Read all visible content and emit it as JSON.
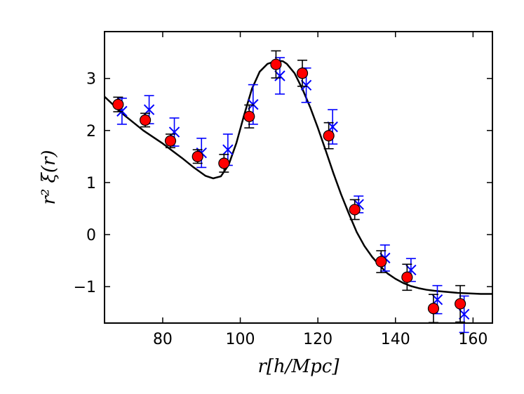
{
  "chart_data": {
    "type": "scatter",
    "title": "",
    "xlabel": "r[h/Mpc]",
    "ylabel": "r² ξ(r)",
    "xlim": [
      65,
      165
    ],
    "ylim": [
      -1.7,
      3.9
    ],
    "xticks": [
      80,
      100,
      120,
      140,
      160
    ],
    "yticks": [
      -1,
      0,
      1,
      2,
      3
    ],
    "xtick_labels": [
      "80",
      "100",
      "120",
      "140",
      "160"
    ],
    "ytick_labels": [
      "−1",
      "0",
      "1",
      "2",
      "3"
    ],
    "grid": false,
    "legend": "none",
    "series": [
      {
        "style": "red-circles-black-errorbars",
        "color": "#ff0000",
        "errorbar_color": "#000000",
        "x": [
          68.5,
          75.5,
          82.0,
          89.0,
          95.8,
          102.3,
          109.2,
          116.0,
          122.8,
          129.5,
          136.3,
          143.0,
          149.8,
          156.7
        ],
        "y": [
          2.5,
          2.2,
          1.8,
          1.5,
          1.37,
          2.27,
          3.27,
          3.1,
          1.9,
          0.48,
          -0.52,
          -0.82,
          -1.42,
          -1.33
        ],
        "yerr": [
          0.14,
          0.13,
          0.13,
          0.13,
          0.17,
          0.22,
          0.26,
          0.25,
          0.25,
          0.19,
          0.21,
          0.25,
          0.27,
          0.35
        ]
      },
      {
        "style": "blue-crosses-blue-errorbars",
        "color": "#0000ff",
        "errorbar_color": "#0000ff",
        "x": [
          69.5,
          76.5,
          83.0,
          90.0,
          96.8,
          103.3,
          110.2,
          117.0,
          123.8,
          130.5,
          137.3,
          144.0,
          150.8,
          157.7
        ],
        "y": [
          2.37,
          2.4,
          1.97,
          1.57,
          1.63,
          2.5,
          3.05,
          2.87,
          2.07,
          0.58,
          -0.45,
          -0.68,
          -1.25,
          -1.53
        ],
        "yerr": [
          0.25,
          0.27,
          0.27,
          0.28,
          0.3,
          0.38,
          0.35,
          0.33,
          0.33,
          0.16,
          0.25,
          0.22,
          0.27,
          0.35
        ]
      },
      {
        "style": "black-line",
        "color": "#000000",
        "x": [
          65,
          70,
          75,
          80,
          85,
          88,
          91,
          93,
          95,
          97,
          99,
          101,
          103,
          105,
          107,
          109,
          110,
          111,
          112,
          114,
          116,
          118,
          120,
          122,
          124,
          126,
          128,
          130,
          132,
          134,
          136,
          138,
          140,
          142,
          144,
          146,
          148,
          150,
          153,
          156,
          159,
          162,
          165
        ],
        "y": [
          2.65,
          2.3,
          2.0,
          1.75,
          1.47,
          1.29,
          1.13,
          1.08,
          1.12,
          1.34,
          1.76,
          2.3,
          2.8,
          3.13,
          3.28,
          3.33,
          3.34,
          3.33,
          3.28,
          3.1,
          2.8,
          2.45,
          2.05,
          1.62,
          1.18,
          0.77,
          0.4,
          0.05,
          -0.22,
          -0.43,
          -0.6,
          -0.75,
          -0.85,
          -0.93,
          -0.99,
          -1.03,
          -1.06,
          -1.08,
          -1.1,
          -1.12,
          -1.13,
          -1.14,
          -1.14
        ]
      }
    ]
  }
}
